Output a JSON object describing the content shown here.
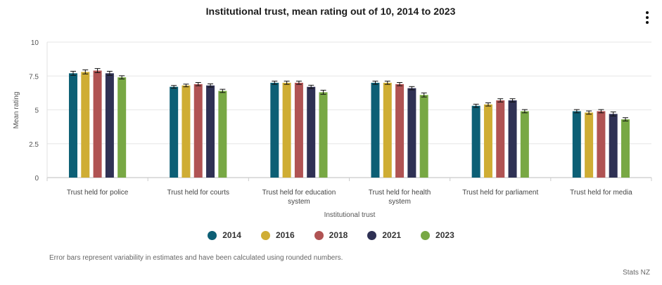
{
  "chart_data": {
    "type": "bar",
    "title": "Institutional trust, mean rating out of 10, 2014 to 2023",
    "xlabel": "Institutional trust",
    "ylabel": "Mean rating",
    "ylim": [
      0,
      10
    ],
    "yticks": [
      "0",
      "2.5",
      "5",
      "7.5",
      "10"
    ],
    "grid": true,
    "legend_position": "bottom",
    "categories": [
      [
        "Trust held for police"
      ],
      [
        "Trust held for courts"
      ],
      [
        "Trust held for education",
        "system"
      ],
      [
        "Trust held for health",
        "system"
      ],
      [
        "Trust held for parliament"
      ],
      [
        "Trust held for media"
      ]
    ],
    "series": [
      {
        "name": "2014",
        "color": "#0d5f75",
        "values": [
          7.7,
          6.7,
          7.0,
          7.0,
          5.3,
          4.9
        ],
        "error": [
          0.15,
          0.1,
          0.12,
          0.12,
          0.12,
          0.12
        ]
      },
      {
        "name": "2016",
        "color": "#cfad34",
        "values": [
          7.8,
          6.8,
          7.0,
          7.0,
          5.4,
          4.8
        ],
        "error": [
          0.15,
          0.1,
          0.12,
          0.12,
          0.12,
          0.12
        ]
      },
      {
        "name": "2018",
        "color": "#b05353",
        "values": [
          7.9,
          6.9,
          7.0,
          6.9,
          5.7,
          4.9
        ],
        "error": [
          0.15,
          0.12,
          0.12,
          0.12,
          0.12,
          0.12
        ]
      },
      {
        "name": "2021",
        "color": "#2f3154",
        "values": [
          7.7,
          6.8,
          6.7,
          6.6,
          5.7,
          4.7
        ],
        "error": [
          0.15,
          0.12,
          0.12,
          0.12,
          0.12,
          0.15
        ]
      },
      {
        "name": "2023",
        "color": "#78a844",
        "values": [
          7.4,
          6.4,
          6.3,
          6.1,
          4.9,
          4.3
        ],
        "error": [
          0.12,
          0.12,
          0.15,
          0.15,
          0.12,
          0.12
        ]
      }
    ]
  },
  "footnote": "Error bars represent variability in estimates and have been calculated using rounded numbers.",
  "credit": "Stats NZ",
  "menu_icon": "more-vertical-icon"
}
